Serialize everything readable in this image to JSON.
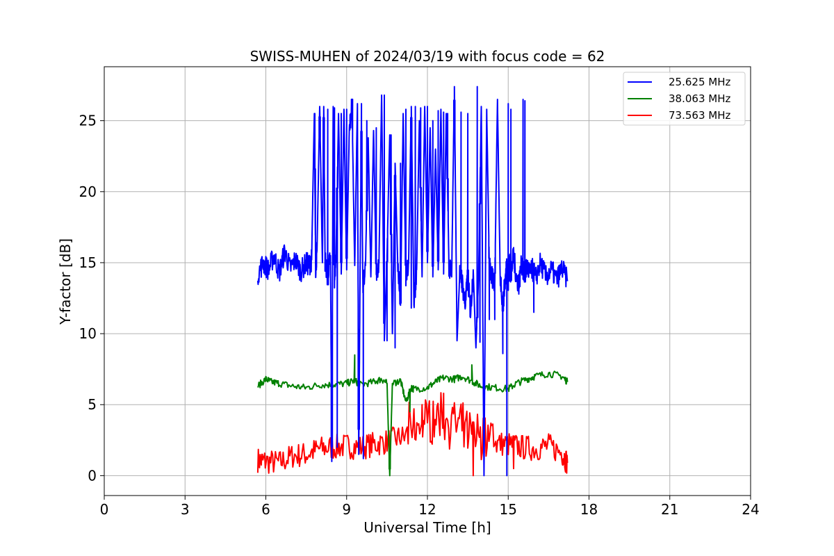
{
  "chart_data": {
    "type": "line",
    "title": "SWISS-MUHEN of 2024/03/19 with focus code = 62",
    "xlabel": "Universal Time [h]",
    "ylabel": "Y-factor [dB]",
    "xlim": [
      0,
      24
    ],
    "ylim": [
      -1.4,
      28.8
    ],
    "xticks": [
      0,
      3,
      6,
      9,
      12,
      15,
      18,
      21,
      24
    ],
    "yticks": [
      0,
      5,
      10,
      15,
      20,
      25
    ],
    "grid": true,
    "legend_position": "top-right",
    "series": [
      {
        "name": "25.625 MHz",
        "color": "#0000ff",
        "x": [
          5.7,
          5.9,
          6.1,
          6.3,
          6.5,
          6.7,
          6.9,
          7.1,
          7.3,
          7.5,
          7.6,
          7.7,
          7.8,
          7.85,
          7.9,
          8.0,
          8.1,
          8.15,
          8.2,
          8.3,
          8.4,
          8.45,
          8.5,
          8.55,
          8.6,
          8.7,
          8.8,
          8.9,
          9.0,
          9.1,
          9.2,
          9.3,
          9.4,
          9.45,
          9.5,
          9.55,
          9.6,
          9.7,
          9.8,
          9.9,
          10.0,
          10.1,
          10.2,
          10.3,
          10.4,
          10.5,
          10.6,
          10.7,
          10.8,
          10.9,
          11.0,
          11.1,
          11.2,
          11.3,
          11.4,
          11.5,
          11.6,
          11.7,
          11.8,
          11.9,
          12.0,
          12.1,
          12.2,
          12.3,
          12.4,
          12.5,
          12.6,
          12.7,
          12.8,
          12.9,
          13.0,
          13.1,
          13.2,
          13.3,
          13.4,
          13.5,
          13.6,
          13.7,
          13.8,
          13.9,
          14.0,
          14.1,
          14.2,
          14.3,
          14.4,
          14.5,
          14.6,
          14.7,
          14.8,
          14.9,
          14.95,
          15.0,
          15.05,
          15.1,
          15.2,
          15.3,
          15.4,
          15.5,
          15.6,
          15.7,
          15.8,
          15.9,
          16.0,
          16.2,
          16.4,
          16.6,
          16.8,
          17.0,
          17.2
        ],
        "values": [
          14.2,
          15.0,
          14.5,
          15.5,
          14.3,
          15.8,
          14.6,
          15.2,
          14.4,
          15.0,
          14.8,
          15.2,
          25.5,
          14.6,
          15.8,
          26.0,
          15.0,
          26.0,
          15.2,
          14.0,
          15.5,
          1.0,
          26.0,
          14.0,
          15.0,
          25.5,
          14.2,
          25.8,
          14.5,
          24.5,
          26.0,
          14.8,
          26.2,
          1.5,
          14.5,
          25.0,
          13.5,
          14.8,
          23.8,
          14.0,
          24.3,
          14.2,
          15.0,
          26.8,
          9.5,
          15.5,
          24.0,
          10.0,
          22.0,
          14.8,
          12.0,
          25.5,
          14.0,
          15.0,
          26.0,
          12.0,
          14.5,
          25.0,
          14.0,
          26.0,
          15.0,
          24.5,
          14.0,
          23.0,
          14.5,
          25.8,
          14.2,
          25.5,
          14.8,
          14.0,
          27.4,
          9.5,
          14.2,
          13.5,
          12.0,
          14.0,
          11.5,
          14.5,
          9.0,
          14.0,
          26.0,
          0.0,
          25.8,
          14.5,
          14.0,
          13.5,
          26.5,
          14.2,
          12.0,
          14.0,
          15.0,
          13.5,
          15.0,
          14.2,
          15.5,
          14.0,
          13.5,
          15.0,
          14.0,
          14.8,
          14.2,
          14.5,
          13.8,
          15.0,
          14.0,
          14.5,
          13.8,
          14.6,
          13.7
        ],
        "spikes": [
          {
            "x": 7.82,
            "value": 25.5
          },
          {
            "x": 8.0,
            "value": 26.0
          },
          {
            "x": 8.15,
            "value": 26.0
          },
          {
            "x": 8.3,
            "value": 25.8
          },
          {
            "x": 8.45,
            "value": 1.0
          },
          {
            "x": 8.55,
            "value": 25.9
          },
          {
            "x": 8.65,
            "value": 2.0
          },
          {
            "x": 8.8,
            "value": 25.5
          },
          {
            "x": 9.0,
            "value": 25.8
          },
          {
            "x": 9.2,
            "value": 26.0
          },
          {
            "x": 9.45,
            "value": 1.5
          },
          {
            "x": 9.55,
            "value": 26.2
          },
          {
            "x": 9.62,
            "value": 1.2
          },
          {
            "x": 9.75,
            "value": 25.0
          },
          {
            "x": 10.1,
            "value": 24.5
          },
          {
            "x": 10.4,
            "value": 26.8
          },
          {
            "x": 10.5,
            "value": 9.5
          },
          {
            "x": 10.65,
            "value": 24.0
          },
          {
            "x": 10.8,
            "value": 9.0
          },
          {
            "x": 11.0,
            "value": 22.0
          },
          {
            "x": 11.2,
            "value": 25.8
          },
          {
            "x": 11.4,
            "value": 11.8
          },
          {
            "x": 11.55,
            "value": 26.0
          },
          {
            "x": 11.75,
            "value": 25.9
          },
          {
            "x": 12.0,
            "value": 26.0
          },
          {
            "x": 12.2,
            "value": 25.0
          },
          {
            "x": 12.4,
            "value": 25.7
          },
          {
            "x": 12.6,
            "value": 25.6
          },
          {
            "x": 12.75,
            "value": 25.5
          },
          {
            "x": 13.0,
            "value": 25.8
          },
          {
            "x": 13.25,
            "value": 25.6
          },
          {
            "x": 13.5,
            "value": 25.5
          },
          {
            "x": 13.85,
            "value": 27.4
          },
          {
            "x": 13.95,
            "value": 9.4
          },
          {
            "x": 14.3,
            "value": 11.0
          },
          {
            "x": 14.5,
            "value": 11.0
          },
          {
            "x": 14.8,
            "value": 8.6
          },
          {
            "x": 14.95,
            "value": 0.0
          },
          {
            "x": 15.0,
            "value": 26.2
          },
          {
            "x": 15.1,
            "value": 25.8
          },
          {
            "x": 15.55,
            "value": 26.5
          },
          {
            "x": 15.62,
            "value": 26.4
          },
          {
            "x": 15.95,
            "value": 11.5
          }
        ]
      },
      {
        "name": "38.063 MHz",
        "color": "#008000",
        "x": [
          5.7,
          6.0,
          6.2,
          6.5,
          7.0,
          7.5,
          8.0,
          8.5,
          9.0,
          9.3,
          9.5,
          10.0,
          10.3,
          10.5,
          10.6,
          10.7,
          11.0,
          11.2,
          11.4,
          11.5,
          12.0,
          12.3,
          12.6,
          13.0,
          13.3,
          13.7,
          14.0,
          14.5,
          15.0,
          15.3,
          15.7,
          16.0,
          16.5,
          17.0,
          17.2
        ],
        "values": [
          6.3,
          6.8,
          6.6,
          6.5,
          6.3,
          6.2,
          6.4,
          6.4,
          6.5,
          6.7,
          6.4,
          6.6,
          6.8,
          6.5,
          0.0,
          6.5,
          6.7,
          5.2,
          6.2,
          6.1,
          6.2,
          6.6,
          6.9,
          6.8,
          7.0,
          6.6,
          6.3,
          6.2,
          6.1,
          6.5,
          6.8,
          7.0,
          7.2,
          7.0,
          6.6
        ],
        "spikes": [
          {
            "x": 9.3,
            "value": 8.5
          },
          {
            "x": 10.6,
            "value": 0.0
          },
          {
            "x": 11.35,
            "value": 4.5
          },
          {
            "x": 13.65,
            "value": 7.8
          }
        ]
      },
      {
        "name": "73.563 MHz",
        "color": "#ff0000",
        "x": [
          5.7,
          6.0,
          6.5,
          7.0,
          7.5,
          8.0,
          8.5,
          9.0,
          9.5,
          10.0,
          10.5,
          11.0,
          11.5,
          12.0,
          12.5,
          13.0,
          13.5,
          14.0,
          14.5,
          15.0,
          15.5,
          16.0,
          16.5,
          17.0,
          17.2
        ],
        "values": [
          1.1,
          1.0,
          0.9,
          1.4,
          1.5,
          1.9,
          2.0,
          2.1,
          2.0,
          2.2,
          2.4,
          2.7,
          2.8,
          3.5,
          3.8,
          3.2,
          2.6,
          2.4,
          2.3,
          2.2,
          2.0,
          1.9,
          2.1,
          1.6,
          0.9
        ],
        "spikes": [
          {
            "x": 13.7,
            "value": 0.0
          },
          {
            "x": 14.1,
            "value": 3.8
          },
          {
            "x": 15.2,
            "value": 0.5
          },
          {
            "x": 11.8,
            "value": 5.0
          },
          {
            "x": 12.6,
            "value": 5.8
          }
        ]
      }
    ]
  }
}
